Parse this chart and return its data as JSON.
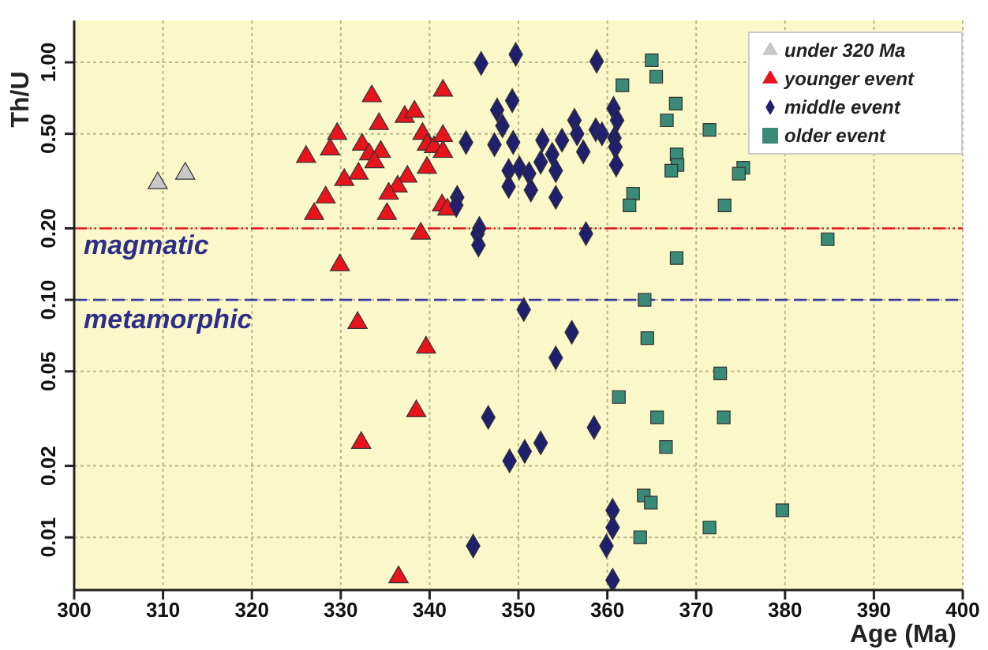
{
  "chart_data": {
    "type": "scatter",
    "xlabel": "Age (Ma)",
    "ylabel": "Th/U",
    "log": "y",
    "grid": true,
    "legend": "top right",
    "xlim": [
      300,
      400
    ],
    "xticks": [
      300,
      310,
      320,
      330,
      340,
      350,
      360,
      370,
      380,
      390,
      400
    ],
    "ylim": [
      0.006,
      1.5
    ],
    "yticks": [
      {
        "value": 0.01,
        "label": "0.01"
      },
      {
        "value": 0.02,
        "label": "0.02"
      },
      {
        "value": 0.05,
        "label": "0.05"
      },
      {
        "value": 0.1,
        "label": "0.10"
      },
      {
        "value": 0.2,
        "label": "0.20"
      },
      {
        "value": 0.5,
        "label": "0.50"
      },
      {
        "value": 1,
        "label": "1.00"
      }
    ],
    "ref_lines": [
      {
        "axis": "y",
        "value": 0.2,
        "label": "magmatic",
        "color": "#e8141c",
        "line_style": "dashed"
      },
      {
        "axis": "y",
        "value": 0.1,
        "label": "metamorphic",
        "color": "#3a3aa0",
        "line_style": "dashed"
      }
    ],
    "series": [
      {
        "name": "under 320 Ma",
        "color": "#c8c8c8",
        "marker": "triangle",
        "x": [
          309.4,
          312.5
        ],
        "values": [
          0.31,
          0.34
        ]
      },
      {
        "name": "younger event",
        "color": "#e8141c",
        "marker": "triangle",
        "x": [
          326.1,
          329.6,
          328.8,
          333.5,
          334.3,
          337.2,
          338.3,
          341.5,
          332.4,
          333.2,
          334.5,
          333.8,
          339.2,
          339.7,
          340.5,
          341.5,
          341.5,
          332.0,
          330.4,
          337.5,
          336.4,
          335.4,
          339.7,
          328.3,
          327.0,
          335.2,
          341.4,
          342.0,
          339.0,
          329.9,
          331.9,
          339.6,
          338.5,
          332.3,
          336.5
        ],
        "values": [
          0.4,
          0.5,
          0.43,
          0.72,
          0.55,
          0.59,
          0.62,
          0.76,
          0.45,
          0.41,
          0.42,
          0.38,
          0.5,
          0.45,
          0.44,
          0.49,
          0.42,
          0.34,
          0.32,
          0.33,
          0.3,
          0.28,
          0.36,
          0.27,
          0.23,
          0.23,
          0.25,
          0.24,
          0.19,
          0.14,
          0.08,
          0.063,
          0.034,
          0.025,
          0.0068
        ]
      },
      {
        "name": "middle event",
        "color": "#1f1f6e",
        "marker": "diamond",
        "x": [
          345.8,
          349.7,
          347.6,
          349.3,
          348.2,
          344.1,
          347.3,
          349.4,
          352.7,
          353.8,
          352.5,
          348.9,
          350.1,
          351.2,
          354.2,
          348.9,
          351.4,
          354.2,
          343.1,
          343.0,
          345.6,
          345.4,
          345.5,
          358.8,
          356.3,
          356.6,
          354.9,
          357.3,
          360.7,
          361.1,
          358.7,
          359.4,
          360.8,
          360.9,
          361.0,
          357.6,
          350.6,
          354.2,
          346.6,
          349.0,
          350.7,
          352.5,
          344.9,
          356.0,
          358.5,
          360.6,
          360.6,
          359.9,
          360.6
        ],
        "values": [
          0.99,
          1.08,
          0.63,
          0.69,
          0.54,
          0.46,
          0.45,
          0.46,
          0.47,
          0.41,
          0.38,
          0.35,
          0.36,
          0.34,
          0.35,
          0.3,
          0.29,
          0.27,
          0.27,
          0.25,
          0.2,
          0.19,
          0.17,
          1.01,
          0.57,
          0.5,
          0.47,
          0.42,
          0.64,
          0.57,
          0.52,
          0.5,
          0.48,
          0.44,
          0.37,
          0.19,
          0.091,
          0.057,
          0.032,
          0.021,
          0.023,
          0.025,
          0.0092,
          0.073,
          0.029,
          0.013,
          0.011,
          0.0092,
          0.0066
        ]
      },
      {
        "name": "older event",
        "color": "#3a8a78",
        "marker": "square",
        "x": [
          365.0,
          365.5,
          361.7,
          367.7,
          366.7,
          371.5,
          367.8,
          367.9,
          367.2,
          375.3,
          374.8,
          362.9,
          362.5,
          373.2,
          384.8,
          367.8,
          364.2,
          364.5,
          372.7,
          361.3,
          365.6,
          373.1,
          366.6,
          364.1,
          364.9,
          379.7,
          371.5,
          363.7
        ],
        "values": [
          1.02,
          0.87,
          0.8,
          0.67,
          0.57,
          0.52,
          0.41,
          0.37,
          0.35,
          0.36,
          0.34,
          0.28,
          0.25,
          0.25,
          0.18,
          0.15,
          0.1,
          0.069,
          0.049,
          0.039,
          0.032,
          0.032,
          0.024,
          0.015,
          0.014,
          0.013,
          0.011,
          0.01
        ]
      }
    ]
  }
}
